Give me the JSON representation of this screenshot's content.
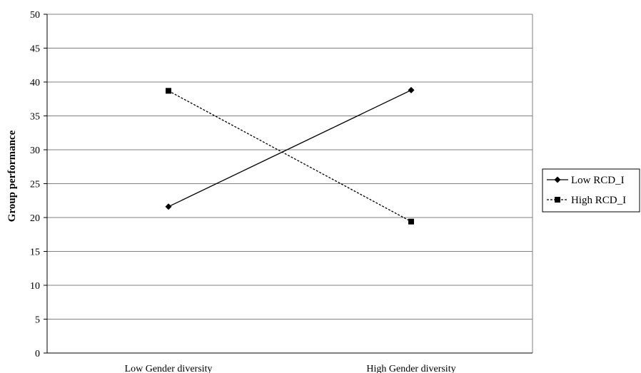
{
  "chart_data": {
    "type": "line",
    "categories": [
      "Low Gender diversity",
      "High Gender diversity"
    ],
    "series": [
      {
        "name": "Low RCD_I",
        "values": [
          21.6,
          38.8
        ],
        "marker": "diamond",
        "dash": "solid"
      },
      {
        "name": "High RCD_I",
        "values": [
          38.7,
          19.4
        ],
        "marker": "square",
        "dash": "dashed"
      }
    ],
    "title": "",
    "xlabel": "",
    "ylabel": "Group performance",
    "ylim": [
      0,
      50
    ],
    "yticks": [
      0,
      5,
      10,
      15,
      20,
      25,
      30,
      35,
      40,
      45,
      50
    ],
    "grid": true,
    "legend": "right",
    "colors": {
      "line": "#000000",
      "grid": "#808080"
    }
  }
}
